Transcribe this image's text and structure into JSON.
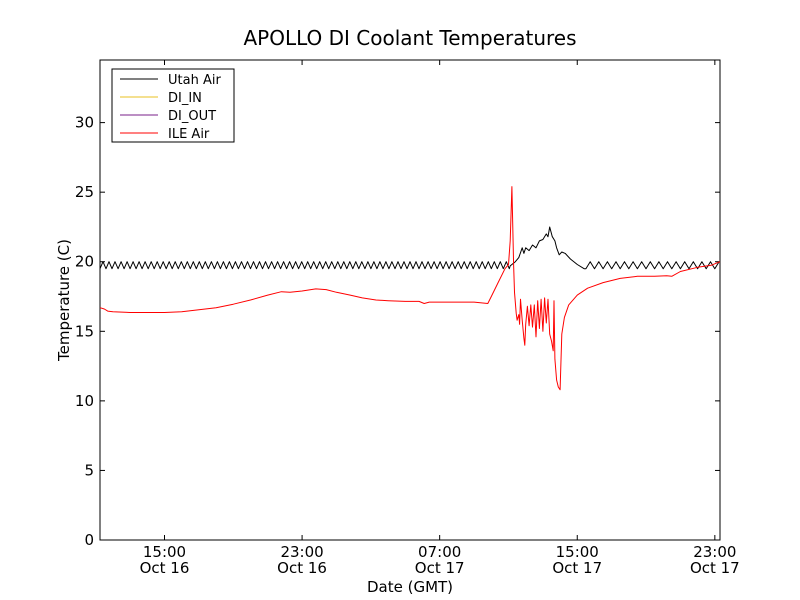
{
  "chart_data": {
    "type": "line",
    "title": "APOLLO DI Coolant Temperatures",
    "xlabel": "Date (GMT)",
    "ylabel": "Temperature (C)",
    "xlim": [
      11.25,
      47.3
    ],
    "ylim": [
      0,
      34.5
    ],
    "x_unit": "hours since Oct 16 00:00 GMT",
    "grid": false,
    "legend_position": "top-left",
    "x_ticks": [
      {
        "value": 15,
        "time": "15:00",
        "date": "Oct 16"
      },
      {
        "value": 23,
        "time": "23:00",
        "date": "Oct 16"
      },
      {
        "value": 31,
        "time": "07:00",
        "date": "Oct 17"
      },
      {
        "value": 39,
        "time": "15:00",
        "date": "Oct 17"
      },
      {
        "value": 47,
        "time": "23:00",
        "date": "Oct 17"
      }
    ],
    "y_ticks": [
      0,
      5,
      10,
      15,
      20,
      25,
      30
    ],
    "series": [
      {
        "name": "Utah Air",
        "color": "#000000",
        "oscillation": {
          "start": 11.25,
          "end": 35.1,
          "low": 19.5,
          "high": 20.0,
          "period": 0.35
        },
        "points": [
          [
            35.1,
            19.7
          ],
          [
            35.4,
            20.0
          ],
          [
            35.6,
            20.3
          ],
          [
            35.8,
            21.0
          ],
          [
            35.9,
            20.6
          ],
          [
            36.0,
            21.0
          ],
          [
            36.2,
            20.8
          ],
          [
            36.4,
            21.2
          ],
          [
            36.6,
            21.0
          ],
          [
            36.8,
            21.5
          ],
          [
            37.0,
            21.6
          ],
          [
            37.2,
            22.0
          ],
          [
            37.3,
            21.8
          ],
          [
            37.4,
            22.5
          ],
          [
            37.55,
            21.8
          ],
          [
            37.7,
            21.5
          ],
          [
            37.8,
            21.0
          ],
          [
            37.95,
            20.5
          ],
          [
            38.1,
            20.7
          ],
          [
            38.3,
            20.6
          ],
          [
            38.6,
            20.2
          ],
          [
            39.0,
            19.8
          ],
          [
            39.4,
            19.5
          ]
        ],
        "oscillation2": {
          "start": 39.5,
          "end": 47.3,
          "low": 19.5,
          "high": 20.0,
          "period": 0.5
        }
      },
      {
        "name": "DI_IN",
        "color": "#e8c020",
        "points": []
      },
      {
        "name": "DI_OUT",
        "color": "#7a1f8a",
        "points": []
      },
      {
        "name": "ILE Air",
        "color": "#ff0000",
        "points": [
          [
            11.25,
            16.7
          ],
          [
            11.5,
            16.6
          ],
          [
            11.7,
            16.45
          ],
          [
            12.0,
            16.4
          ],
          [
            13.0,
            16.35
          ],
          [
            14.0,
            16.35
          ],
          [
            15.0,
            16.35
          ],
          [
            16.0,
            16.4
          ],
          [
            17.0,
            16.55
          ],
          [
            18.0,
            16.7
          ],
          [
            19.0,
            16.95
          ],
          [
            20.0,
            17.25
          ],
          [
            21.0,
            17.6
          ],
          [
            21.8,
            17.85
          ],
          [
            22.3,
            17.8
          ],
          [
            23.0,
            17.9
          ],
          [
            23.8,
            18.05
          ],
          [
            24.4,
            18.0
          ],
          [
            25.0,
            17.8
          ],
          [
            25.8,
            17.6
          ],
          [
            26.5,
            17.4
          ],
          [
            27.3,
            17.25
          ],
          [
            28.0,
            17.2
          ],
          [
            29.0,
            17.15
          ],
          [
            29.8,
            17.15
          ],
          [
            30.1,
            17.0
          ],
          [
            30.4,
            17.1
          ],
          [
            31.0,
            17.1
          ],
          [
            32.0,
            17.1
          ],
          [
            33.0,
            17.1
          ],
          [
            33.8,
            17.0
          ],
          [
            34.0,
            17.5
          ],
          [
            34.4,
            18.5
          ],
          [
            34.8,
            19.5
          ],
          [
            35.0,
            19.8
          ],
          [
            35.1,
            21.5
          ],
          [
            35.2,
            25.4
          ],
          [
            35.3,
            19.8
          ],
          [
            35.35,
            17.8
          ],
          [
            35.45,
            16.3
          ],
          [
            35.5,
            15.8
          ],
          [
            35.6,
            16.2
          ],
          [
            35.65,
            15.5
          ],
          [
            35.7,
            17.3
          ],
          [
            35.8,
            15.8
          ],
          [
            35.9,
            14.5
          ],
          [
            35.95,
            14.0
          ],
          [
            36.0,
            15.5
          ],
          [
            36.1,
            16.8
          ],
          [
            36.2,
            15.4
          ],
          [
            36.3,
            16.9
          ],
          [
            36.4,
            15.3
          ],
          [
            36.5,
            16.9
          ],
          [
            36.6,
            14.6
          ],
          [
            36.7,
            17.2
          ],
          [
            36.8,
            15.2
          ],
          [
            36.9,
            17.3
          ],
          [
            37.0,
            15.0
          ],
          [
            37.1,
            17.4
          ],
          [
            37.2,
            15.6
          ],
          [
            37.3,
            17.3
          ],
          [
            37.4,
            14.8
          ],
          [
            37.5,
            14.3
          ],
          [
            37.6,
            13.6
          ],
          [
            37.65,
            17.2
          ],
          [
            37.7,
            13.0
          ],
          [
            37.8,
            11.5
          ],
          [
            37.9,
            11.0
          ],
          [
            38.0,
            10.8
          ],
          [
            38.1,
            14.8
          ],
          [
            38.25,
            16.0
          ],
          [
            38.5,
            16.9
          ],
          [
            39.0,
            17.6
          ],
          [
            39.6,
            18.1
          ],
          [
            40.5,
            18.5
          ],
          [
            41.5,
            18.8
          ],
          [
            42.5,
            18.95
          ],
          [
            43.5,
            18.95
          ],
          [
            44.2,
            19.0
          ],
          [
            44.5,
            18.95
          ],
          [
            45.0,
            19.3
          ],
          [
            46.0,
            19.6
          ],
          [
            46.8,
            19.75
          ],
          [
            47.3,
            20.0
          ]
        ]
      }
    ]
  }
}
